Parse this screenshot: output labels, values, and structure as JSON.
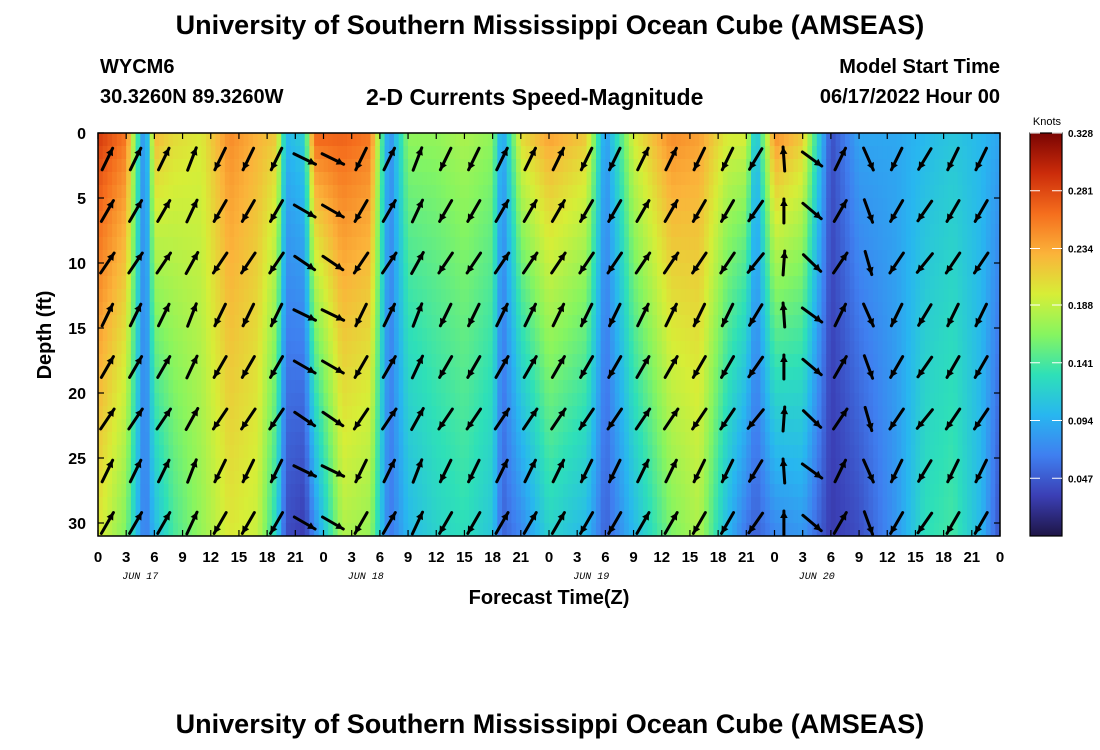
{
  "header": {
    "title": "University of Southern Mississippi Ocean Cube (AMSEAS)",
    "station": "WYCM6",
    "coords": "30.3260N  89.3260W",
    "subtitle": "2-D Currents Speed-Magnitude",
    "start_label": "Model Start Time",
    "start_date": "06/17/2022 Hour 00"
  },
  "footer": {
    "title": "University of Southern Mississippi Ocean Cube (AMSEAS)"
  },
  "chart_data": {
    "type": "heatmap",
    "title": "2-D Currents Speed-Magnitude",
    "xlabel": "Forecast Time(Z)",
    "ylabel": "Depth (ft)",
    "x_ticks": [
      "0",
      "3",
      "6",
      "9",
      "12",
      "15",
      "18",
      "21",
      "0",
      "3",
      "6",
      "9",
      "12",
      "15",
      "18",
      "21",
      "0",
      "3",
      "6",
      "9",
      "12",
      "15",
      "18",
      "21",
      "0",
      "3",
      "6",
      "9",
      "12",
      "15",
      "18",
      "21",
      "0"
    ],
    "day_labels": [
      "JUN 17",
      "JUN 18",
      "JUN 19",
      "JUN 20"
    ],
    "y_ticks": [
      0,
      5,
      10,
      15,
      20,
      25,
      30
    ],
    "xlim_hours": [
      0,
      96
    ],
    "ylim_ft": [
      0,
      31
    ],
    "colorbar": {
      "label": "Knots",
      "ticks": [
        0.328,
        0.281,
        0.234,
        0.188,
        0.141,
        0.094,
        0.047
      ],
      "range": [
        0.0,
        0.328
      ],
      "colors": [
        "#1e1546",
        "#3b3fb5",
        "#3f7ff0",
        "#28b6f0",
        "#2ee0b8",
        "#86f560",
        "#d7ee37",
        "#fbb33a",
        "#f56e1d",
        "#cc2c0a",
        "#7a0403"
      ]
    },
    "speed_profile": [
      {
        "hour": 0,
        "surface": 0.29,
        "bottom": 0.2
      },
      {
        "hour": 3,
        "surface": 0.26,
        "bottom": 0.16
      },
      {
        "hour": 5,
        "surface": 0.06,
        "bottom": 0.06
      },
      {
        "hour": 6,
        "surface": 0.23,
        "bottom": 0.1
      },
      {
        "hour": 8,
        "surface": 0.21,
        "bottom": 0.14
      },
      {
        "hour": 11,
        "surface": 0.2,
        "bottom": 0.17
      },
      {
        "hour": 14,
        "surface": 0.25,
        "bottom": 0.2
      },
      {
        "hour": 17,
        "surface": 0.23,
        "bottom": 0.19
      },
      {
        "hour": 19,
        "surface": 0.22,
        "bottom": 0.12
      },
      {
        "hour": 20,
        "surface": 0.1,
        "bottom": 0.04
      },
      {
        "hour": 22,
        "surface": 0.12,
        "bottom": 0.03
      },
      {
        "hour": 23,
        "surface": 0.27,
        "bottom": 0.07
      },
      {
        "hour": 26,
        "surface": 0.27,
        "bottom": 0.18
      },
      {
        "hour": 29,
        "surface": 0.26,
        "bottom": 0.17
      },
      {
        "hour": 31,
        "surface": 0.07,
        "bottom": 0.06
      },
      {
        "hour": 33,
        "surface": 0.17,
        "bottom": 0.1
      },
      {
        "hour": 36,
        "surface": 0.17,
        "bottom": 0.12
      },
      {
        "hour": 39,
        "surface": 0.18,
        "bottom": 0.13
      },
      {
        "hour": 42,
        "surface": 0.17,
        "bottom": 0.11
      },
      {
        "hour": 43,
        "surface": 0.08,
        "bottom": 0.05
      },
      {
        "hour": 45,
        "surface": 0.21,
        "bottom": 0.07
      },
      {
        "hour": 48,
        "surface": 0.24,
        "bottom": 0.12
      },
      {
        "hour": 52,
        "surface": 0.22,
        "bottom": 0.1
      },
      {
        "hour": 54,
        "surface": 0.08,
        "bottom": 0.05
      },
      {
        "hour": 57,
        "surface": 0.2,
        "bottom": 0.1
      },
      {
        "hour": 61,
        "surface": 0.25,
        "bottom": 0.16
      },
      {
        "hour": 64,
        "surface": 0.24,
        "bottom": 0.18
      },
      {
        "hour": 67,
        "surface": 0.2,
        "bottom": 0.1
      },
      {
        "hour": 69,
        "surface": 0.2,
        "bottom": 0.06
      },
      {
        "hour": 70,
        "surface": 0.1,
        "bottom": 0.05
      },
      {
        "hour": 72,
        "surface": 0.25,
        "bottom": 0.07
      },
      {
        "hour": 75,
        "surface": 0.22,
        "bottom": 0.08
      },
      {
        "hour": 78,
        "surface": 0.04,
        "bottom": 0.03
      },
      {
        "hour": 81,
        "surface": 0.09,
        "bottom": 0.04
      },
      {
        "hour": 85,
        "surface": 0.09,
        "bottom": 0.08
      },
      {
        "hour": 88,
        "surface": 0.1,
        "bottom": 0.13
      },
      {
        "hour": 91,
        "surface": 0.11,
        "bottom": 0.14
      },
      {
        "hour": 94,
        "surface": 0.1,
        "bottom": 0.1
      },
      {
        "hour": 96,
        "surface": 0.09,
        "bottom": 0.04
      }
    ],
    "arrow_depths_ft": [
      2,
      6,
      10,
      14,
      18,
      22,
      26,
      30
    ],
    "arrow_hours": [
      1,
      4,
      7,
      10,
      13,
      16,
      19,
      22,
      25,
      28,
      31,
      34,
      37,
      40,
      43,
      46,
      49,
      52,
      55,
      58,
      61,
      64,
      67,
      70,
      73,
      76,
      79,
      82,
      85,
      88,
      91,
      94
    ],
    "arrow_directions_deg": [
      30,
      30,
      30,
      25,
      210,
      210,
      210,
      120,
      120,
      210,
      30,
      25,
      210,
      210,
      30,
      30,
      30,
      210,
      210,
      30,
      30,
      210,
      210,
      215,
      0,
      130,
      30,
      160,
      210,
      215,
      210,
      210
    ]
  }
}
